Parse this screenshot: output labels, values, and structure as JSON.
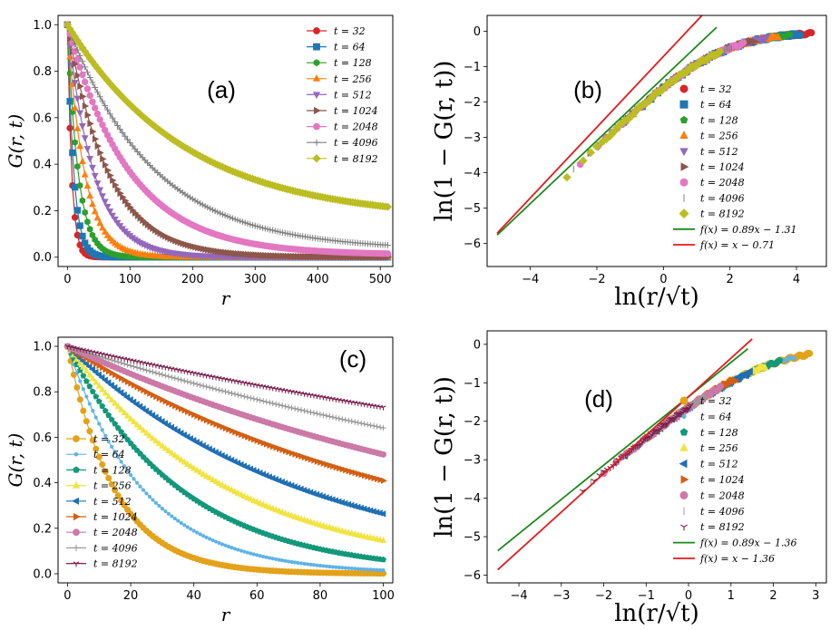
{
  "colors": {
    "t32": "#d62728",
    "t64": "#1f77b4",
    "t128": "#2ca02c",
    "t256": "#ff7f0e",
    "t512": "#9467bd",
    "t1024": "#8c564b",
    "t2048": "#e377c2",
    "t4096": "#7f7f7f",
    "t8192": "#bcbd22",
    "c32": "#e3a21a",
    "c64": "#5fb3e6",
    "c128": "#12987a",
    "c256": "#f0e442",
    "c512": "#1f6fb4",
    "c1024": "#d35f14",
    "c2048": "#cc79a7",
    "c4096": "#999999",
    "c8192": "#7b1f4f",
    "fit_green": "#1a8a1a",
    "fit_red": "#e41a1c"
  },
  "chart_data": [
    {
      "id": "a",
      "type": "line",
      "panel_label": "(a)",
      "xlabel": "r",
      "ylabel": "G(r, t)",
      "xlim": [
        -15,
        520
      ],
      "ylim": [
        -0.04,
        1.04
      ],
      "xticks": [
        "0",
        "100",
        "200",
        "300",
        "400",
        "500"
      ],
      "yticks": [
        "0.0",
        "0.2",
        "0.4",
        "0.6",
        "0.8",
        "1.0"
      ],
      "series": [
        {
          "name": "t = 32",
          "t": 32,
          "marker": "circle",
          "ell": 6.8,
          "inf": 0.0
        },
        {
          "name": "t = 64",
          "t": 64,
          "marker": "square",
          "ell": 10,
          "inf": 0.0
        },
        {
          "name": "t = 128",
          "t": 128,
          "marker": "hexagon",
          "ell": 17,
          "inf": 0.0
        },
        {
          "name": "t = 256",
          "t": 256,
          "marker": "triangle-up",
          "ell": 27,
          "inf": 0.0
        },
        {
          "name": "t = 512",
          "t": 512,
          "marker": "triangle-down",
          "ell": 42,
          "inf": 0.0
        },
        {
          "name": "t = 1024",
          "t": 1024,
          "marker": "triangle-right",
          "ell": 65,
          "inf": 0.0
        },
        {
          "name": "t = 2048",
          "t": 2048,
          "marker": "circle",
          "ell": 98,
          "inf": 0.01
        },
        {
          "name": "t = 4096",
          "t": 4096,
          "marker": "plus",
          "ell": 135,
          "inf": 0.03
        },
        {
          "name": "t = 8192",
          "t": 8192,
          "marker": "diamond",
          "ell": 190,
          "inf": 0.16
        }
      ]
    },
    {
      "id": "b",
      "type": "scatter",
      "panel_label": "(b)",
      "xlabel": "ln(r/√t)",
      "ylabel": "ln(1 − G(r, t))",
      "xlim": [
        -5.3,
        4.9
      ],
      "ylim": [
        -6.65,
        0.45
      ],
      "xticks": [
        "−4",
        "−2",
        "0",
        "2",
        "4"
      ],
      "yticks": [
        "−6",
        "−5",
        "−4",
        "−3",
        "−2",
        "−1",
        "0"
      ],
      "fits": [
        {
          "label": "f(x) = 0.89x − 1.31",
          "slope": 0.89,
          "intercept": -1.31,
          "x": [
            -5,
            1.6
          ]
        },
        {
          "label": "f(x) = x − 0.71",
          "slope": 1,
          "intercept": -0.71,
          "x": [
            -5,
            1.55
          ]
        }
      ],
      "series": [
        {
          "name": "t = 32",
          "t": 32,
          "marker": "circle",
          "xmin": -1.0,
          "xmax": 4.45
        },
        {
          "name": "t = 64",
          "t": 64,
          "marker": "square",
          "xmin": -1.2,
          "xmax": 4.1
        },
        {
          "name": "t = 128",
          "t": 128,
          "marker": "pentagon",
          "xmin": -1.5,
          "xmax": 3.8
        },
        {
          "name": "t = 256",
          "t": 256,
          "marker": "triangle-up",
          "xmin": -1.7,
          "xmax": 3.45
        },
        {
          "name": "t = 512",
          "t": 512,
          "marker": "triangle-down",
          "xmin": -1.9,
          "xmax": 3.1
        },
        {
          "name": "t = 1024",
          "t": 1024,
          "marker": "triangle-right",
          "xmin": -2.2,
          "xmax": 2.75
        },
        {
          "name": "t = 2048",
          "t": 2048,
          "marker": "circle",
          "xmin": -2.5,
          "xmax": 2.4
        },
        {
          "name": "t = 4096",
          "t": 4096,
          "marker": "vline",
          "xmin": -2.7,
          "xmax": 2.05
        },
        {
          "name": "t = 8192",
          "t": 8192,
          "marker": "diamond",
          "xmin": -2.9,
          "xmax": 1.7
        }
      ]
    },
    {
      "id": "c",
      "type": "line",
      "panel_label": "(c)",
      "xlabel": "r",
      "ylabel": "G(r, t)",
      "xlim": [
        -3,
        103
      ],
      "ylim": [
        -0.04,
        1.04
      ],
      "xticks": [
        "0",
        "20",
        "40",
        "60",
        "80",
        "100"
      ],
      "yticks": [
        "0.0",
        "0.2",
        "0.4",
        "0.6",
        "0.8",
        "1.0"
      ],
      "series": [
        {
          "name": "t = 32",
          "t": 32,
          "marker": "circle",
          "ell": 15,
          "inf": 0.0
        },
        {
          "name": "t = 64",
          "t": 64,
          "marker": "dot",
          "ell": 24,
          "inf": 0.0
        },
        {
          "name": "t = 128",
          "t": 128,
          "marker": "pentagon",
          "ell": 36,
          "inf": 0.0
        },
        {
          "name": "t = 256",
          "t": 256,
          "marker": "triangle-up",
          "ell": 52,
          "inf": 0.0
        },
        {
          "name": "t = 512",
          "t": 512,
          "marker": "triangle-left",
          "ell": 75,
          "inf": 0.0
        },
        {
          "name": "t = 1024",
          "t": 1024,
          "marker": "triangle-right",
          "ell": 112,
          "inf": 0.0
        },
        {
          "name": "t = 2048",
          "t": 2048,
          "marker": "circle",
          "ell": 155,
          "inf": 0.0
        },
        {
          "name": "t = 4096",
          "t": 4096,
          "marker": "plus",
          "ell": 225,
          "inf": 0.0
        },
        {
          "name": "t = 8192",
          "t": 8192,
          "marker": "tri-down",
          "ell": 320,
          "inf": 0.0
        }
      ]
    },
    {
      "id": "d",
      "type": "scatter",
      "panel_label": "(d)",
      "xlabel": "ln(r/√t)",
      "ylabel": "ln(1 − G(r, t))",
      "xlim": [
        -4.75,
        3.25
      ],
      "ylim": [
        -6.2,
        0.35
      ],
      "xticks": [
        "−4",
        "−3",
        "−2",
        "−1",
        "0",
        "1",
        "2",
        "3"
      ],
      "yticks": [
        "−6",
        "−5",
        "−4",
        "−3",
        "−2",
        "−1",
        "0"
      ],
      "fits": [
        {
          "label": "f(x) = 0.89x − 1.36",
          "slope": 0.89,
          "intercept": -1.36,
          "x": [
            -4.5,
            1.4
          ]
        },
        {
          "label": "f(x) = x − 1.36",
          "slope": 1,
          "intercept": -1.36,
          "x": [
            -4.5,
            1.5
          ]
        }
      ],
      "series": [
        {
          "name": "t = 32",
          "t": 32,
          "marker": "circle",
          "xmin": -0.6,
          "xmax": 2.85
        },
        {
          "name": "t = 64",
          "t": 64,
          "marker": "dot",
          "xmin": -0.8,
          "xmax": 2.5
        },
        {
          "name": "t = 128",
          "t": 128,
          "marker": "pentagon",
          "xmin": -1.0,
          "xmax": 2.15
        },
        {
          "name": "t = 256",
          "t": 256,
          "marker": "triangle-up",
          "xmin": -1.3,
          "xmax": 1.8
        },
        {
          "name": "t = 512",
          "t": 512,
          "marker": "triangle-left",
          "xmin": -1.5,
          "xmax": 1.45
        },
        {
          "name": "t = 1024",
          "t": 1024,
          "marker": "triangle-right",
          "xmin": -1.7,
          "xmax": 1.1
        },
        {
          "name": "t = 2048",
          "t": 2048,
          "marker": "circle",
          "xmin": -2.0,
          "xmax": 0.75
        },
        {
          "name": "t = 4096",
          "t": 4096,
          "marker": "vline",
          "xmin": -2.3,
          "xmax": 0.4
        },
        {
          "name": "t = 8192",
          "t": 8192,
          "marker": "tri-down",
          "xmin": -2.5,
          "xmax": 0.05
        }
      ]
    }
  ]
}
